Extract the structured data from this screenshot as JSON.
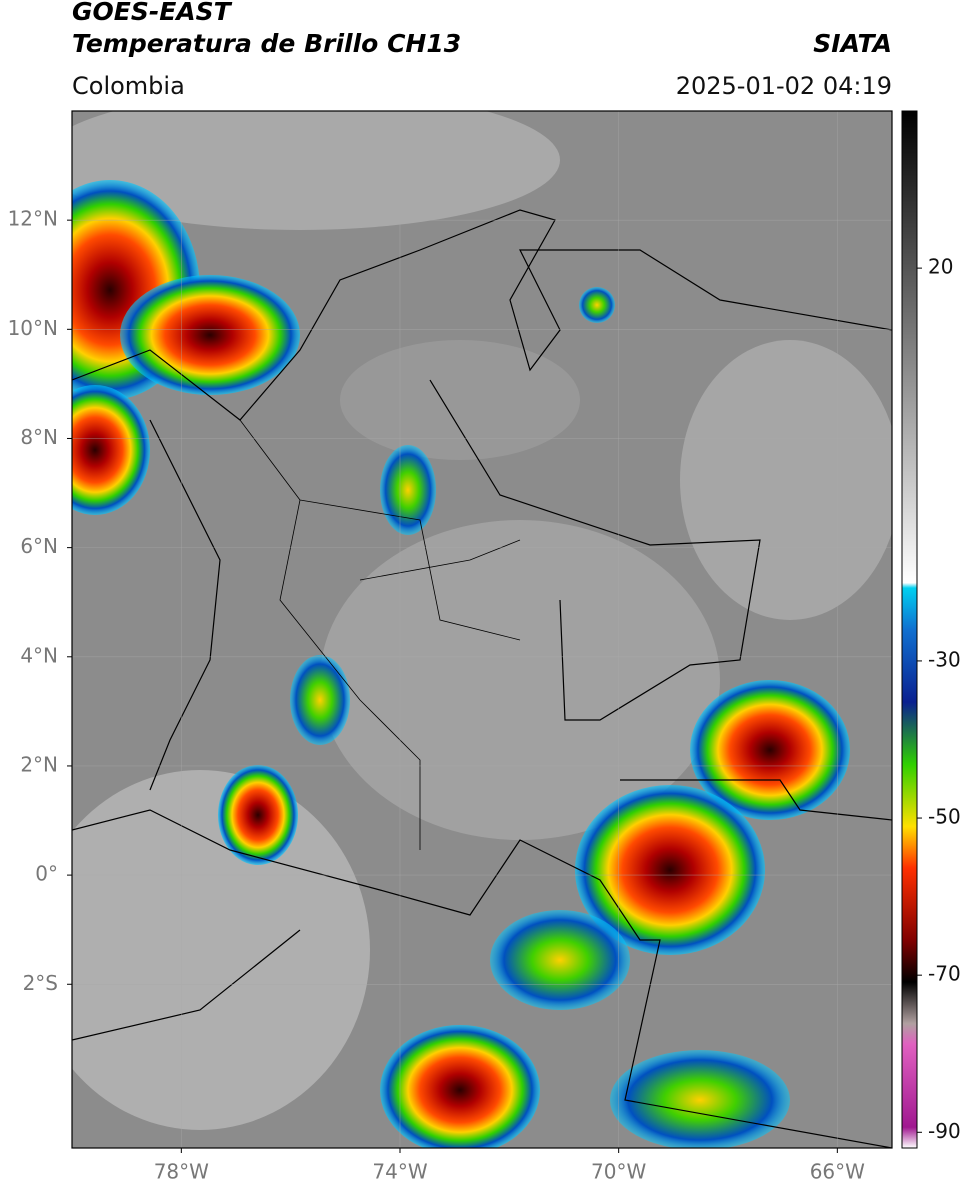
{
  "header": {
    "title": "GOES-EAST",
    "subtitle": "Temperatura de Brillo CH13",
    "source": "SIATA",
    "region": "Colombia",
    "timestamp": "2025-01-02 04:19"
  },
  "map": {
    "xlim": [
      -80,
      -65
    ],
    "ylim": [
      -5,
      14
    ],
    "grid": true,
    "xticks": [
      {
        "value": -78,
        "label": "78°W"
      },
      {
        "value": -74,
        "label": "74°W"
      },
      {
        "value": -70,
        "label": "70°W"
      },
      {
        "value": -66,
        "label": "66°W"
      }
    ],
    "yticks": [
      {
        "value": 12,
        "label": "12°N"
      },
      {
        "value": 10,
        "label": "10°N"
      },
      {
        "value": 8,
        "label": "8°N"
      },
      {
        "value": 6,
        "label": "6°N"
      },
      {
        "value": 4,
        "label": "4°N"
      },
      {
        "value": 2,
        "label": "2°N"
      },
      {
        "value": 0,
        "label": "0°"
      },
      {
        "value": -2,
        "label": "2°S"
      }
    ]
  },
  "colorbar": {
    "lim": [
      -92,
      40
    ],
    "ticks": [
      20,
      -30,
      -50,
      -70,
      -90
    ]
  }
}
